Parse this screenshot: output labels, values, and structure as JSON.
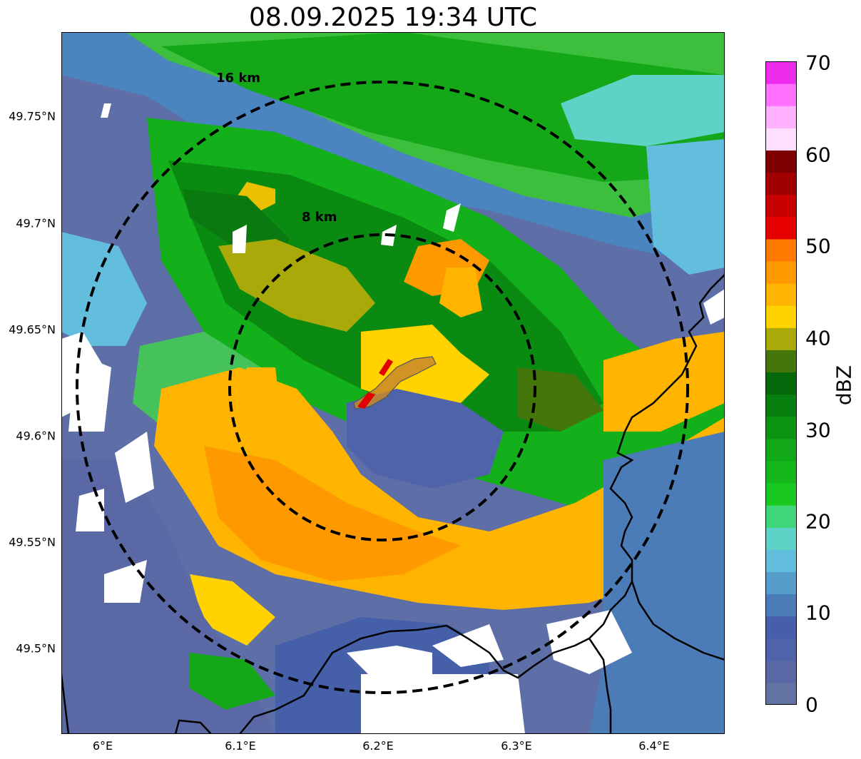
{
  "title": "08.09.2025 19:34 UTC",
  "map": {
    "y_ticks": [
      "49.75°N",
      "49.7°N",
      "49.65°N",
      "49.6°N",
      "49.55°N",
      "49.5°N"
    ],
    "x_ticks": [
      "6°E",
      "6.1°E",
      "6.2°E",
      "6.3°E",
      "6.4°E"
    ],
    "range_rings": [
      {
        "label": "16 km",
        "radius_km": 16
      },
      {
        "label": "8 km",
        "radius_km": 8
      }
    ],
    "center_lon": 6.2,
    "center_lat": 49.622,
    "lon_range": [
      5.97,
      6.45
    ],
    "lat_range": [
      49.46,
      49.79
    ],
    "cell_polygon_color": "#c8882a",
    "border_color": "#000000"
  },
  "colorbar": {
    "label": "dBZ",
    "ticks": [
      "70",
      "60",
      "50",
      "40",
      "30",
      "20",
      "10",
      "0"
    ],
    "min": 0,
    "max": 70,
    "colors": [
      "#6272a3",
      "#5a69a6",
      "#4f63aa",
      "#455fa8",
      "#4b7cb7",
      "#569dcb",
      "#63bedd",
      "#5fd2c8",
      "#3fd67a",
      "#19c91f",
      "#15b81a",
      "#10a816",
      "#0b9311",
      "#08800f",
      "#06670b",
      "#44760b",
      "#a9aa09",
      "#ffd200",
      "#ffb400",
      "#ff9900",
      "#ff7a00",
      "#e60000",
      "#c80000",
      "#a00000",
      "#7c0000",
      "#ffdfff",
      "#ffb0ff",
      "#ff70ff",
      "#ee2cee"
    ]
  }
}
